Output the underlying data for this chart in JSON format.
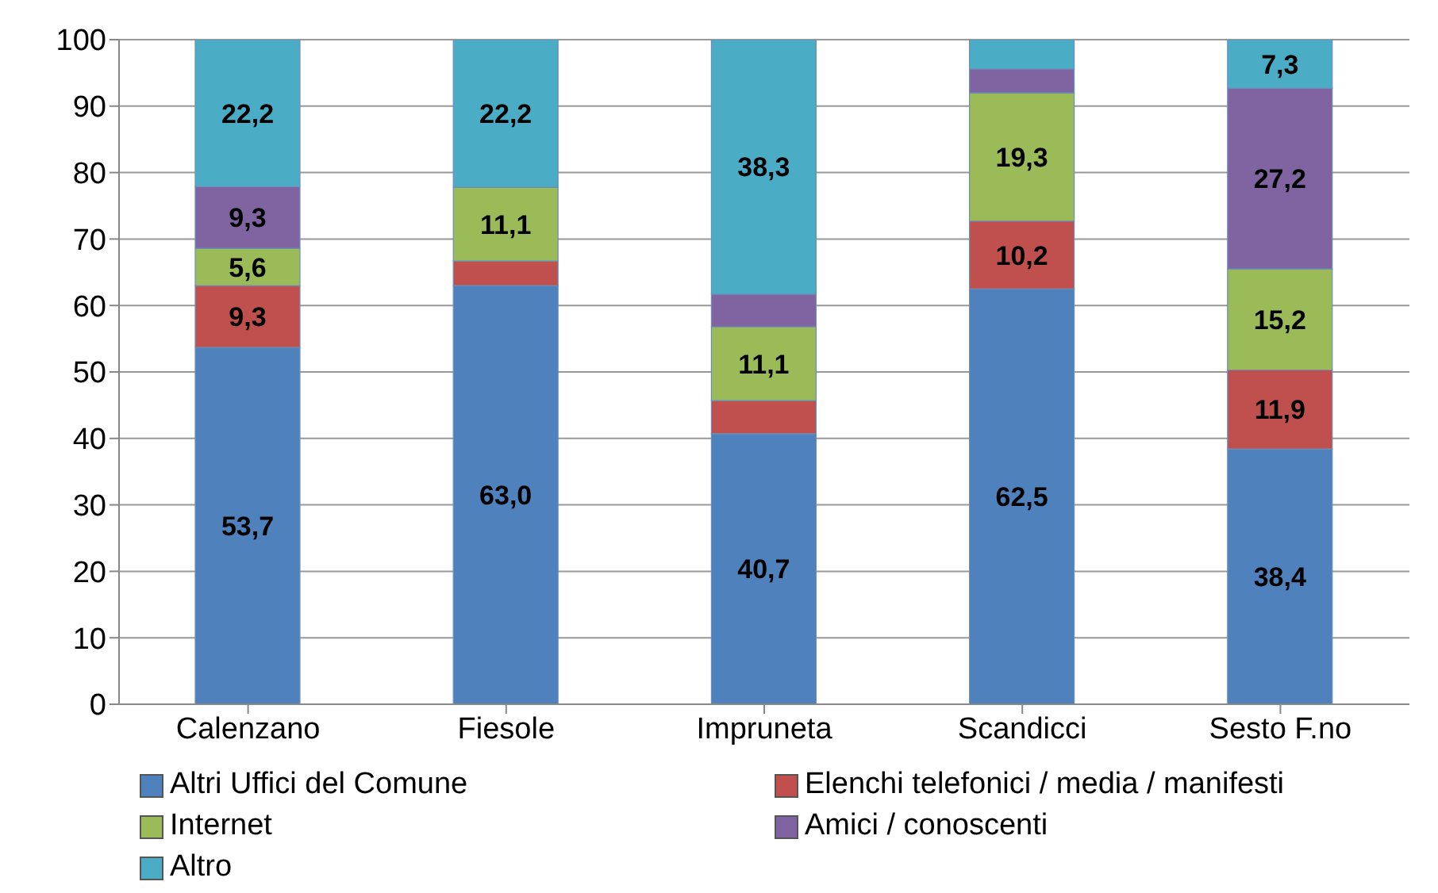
{
  "chart_data": {
    "type": "bar",
    "stacked": true,
    "categories": [
      "Calenzano",
      "Fiesole",
      "Impruneta",
      "Scandicci",
      "Sesto F.no"
    ],
    "series": [
      {
        "name": "Altri Uffici del Comune",
        "color": "#4f81bd",
        "values": [
          53.7,
          63.0,
          40.7,
          62.5,
          38.4
        ],
        "value_labels": [
          "53,7",
          "63,0",
          "40,7",
          "62,5",
          "38,4"
        ]
      },
      {
        "name": "Elenchi telefonici / media / manifesti",
        "color": "#c0504d",
        "values": [
          9.3,
          3.7,
          5.0,
          10.2,
          11.9
        ],
        "value_labels": [
          "9,3",
          null,
          null,
          "10,2",
          "11,9"
        ]
      },
      {
        "name": "Internet",
        "color": "#9bbb59",
        "values": [
          5.6,
          11.1,
          11.1,
          19.3,
          15.2
        ],
        "value_labels": [
          "5,6",
          "11,1",
          "11,1",
          "19,3",
          "15,2"
        ]
      },
      {
        "name": "Amici / conoscenti",
        "color": "#8064a2",
        "values": [
          9.3,
          0,
          4.9,
          3.6,
          27.2
        ],
        "value_labels": [
          "9,3",
          null,
          null,
          null,
          "27,2"
        ]
      },
      {
        "name": "Altro",
        "color": "#4bacc6",
        "values": [
          22.2,
          22.2,
          38.3,
          4.4,
          7.3
        ],
        "value_labels": [
          "22,2",
          "22,2",
          "38,3",
          null,
          "7,3"
        ]
      }
    ],
    "ylim": [
      0,
      100
    ],
    "yticks": [
      0,
      10,
      20,
      30,
      40,
      50,
      60,
      70,
      80,
      90,
      100
    ],
    "grid": "y",
    "legend": "bottom"
  }
}
